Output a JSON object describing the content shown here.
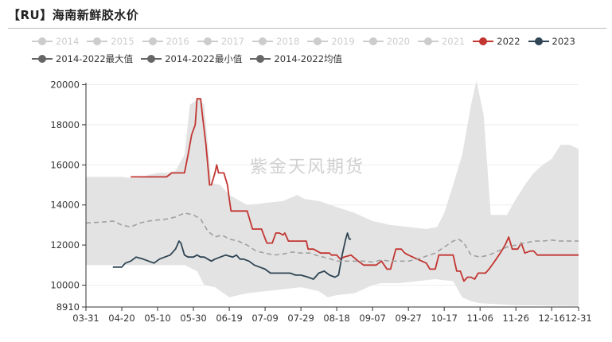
{
  "title": "【RU】海南新鲜胶水价",
  "watermark": "紫金天风期货",
  "colors": {
    "off": "#cccccc",
    "s2022": "#c23531",
    "s2023": "#2f4554",
    "max": "#666666",
    "min": "#666666",
    "avg": "#666666",
    "band": "#e3e3e3",
    "avg_line": "#a0a0a0",
    "axis": "#333333",
    "grid": "#eeeeee"
  },
  "legend": [
    {
      "label": "2014",
      "active": false,
      "color_key": "off"
    },
    {
      "label": "2015",
      "active": false,
      "color_key": "off"
    },
    {
      "label": "2016",
      "active": false,
      "color_key": "off"
    },
    {
      "label": "2017",
      "active": false,
      "color_key": "off"
    },
    {
      "label": "2018",
      "active": false,
      "color_key": "off"
    },
    {
      "label": "2019",
      "active": false,
      "color_key": "off"
    },
    {
      "label": "2020",
      "active": false,
      "color_key": "off"
    },
    {
      "label": "2021",
      "active": false,
      "color_key": "off"
    },
    {
      "label": "2022",
      "active": true,
      "color_key": "s2022"
    },
    {
      "label": "2023",
      "active": true,
      "color_key": "s2023"
    },
    {
      "label": "2014-2022最大值",
      "active": true,
      "color_key": "max"
    },
    {
      "label": "2014-2022最小值",
      "active": true,
      "color_key": "min"
    },
    {
      "label": "2014-2022均值",
      "active": true,
      "color_key": "avg"
    }
  ],
  "chart_data": {
    "type": "line",
    "x_ticks": [
      "03-31",
      "04-20",
      "05-10",
      "05-30",
      "06-19",
      "07-09",
      "07-29",
      "08-18",
      "09-07",
      "09-27",
      "10-17",
      "11-06",
      "11-26",
      "12-16",
      "12-31"
    ],
    "x_tick_days": [
      0,
      20,
      40,
      60,
      80,
      100,
      120,
      140,
      160,
      180,
      200,
      220,
      240,
      260,
      275
    ],
    "y_ticks": [
      8910,
      10000,
      12000,
      14000,
      16000,
      18000,
      20000
    ],
    "ylim": [
      8910,
      20100
    ],
    "xlim": [
      0,
      275
    ],
    "grid": "horizontal",
    "band": {
      "name": "range 2014-2022",
      "max": [
        [
          0,
          15400
        ],
        [
          15,
          15400
        ],
        [
          20,
          15400
        ],
        [
          25,
          15350
        ],
        [
          30,
          15350
        ],
        [
          35,
          15500
        ],
        [
          40,
          15600
        ],
        [
          45,
          15600
        ],
        [
          50,
          15700
        ],
        [
          55,
          16500
        ],
        [
          58,
          19000
        ],
        [
          63,
          19300
        ],
        [
          66,
          19000
        ],
        [
          70,
          15100
        ],
        [
          75,
          15000
        ],
        [
          80,
          14500
        ],
        [
          90,
          14000
        ],
        [
          100,
          14100
        ],
        [
          110,
          14200
        ],
        [
          118,
          14500
        ],
        [
          122,
          14300
        ],
        [
          130,
          14200
        ],
        [
          140,
          13900
        ],
        [
          150,
          13600
        ],
        [
          160,
          13200
        ],
        [
          170,
          13000
        ],
        [
          180,
          12900
        ],
        [
          190,
          12800
        ],
        [
          196,
          12900
        ],
        [
          200,
          13600
        ],
        [
          205,
          15000
        ],
        [
          210,
          16500
        ],
        [
          215,
          19000
        ],
        [
          218,
          20200
        ],
        [
          222,
          18500
        ],
        [
          226,
          13500
        ],
        [
          235,
          13500
        ],
        [
          240,
          14300
        ],
        [
          245,
          15000
        ],
        [
          250,
          15600
        ],
        [
          255,
          16000
        ],
        [
          260,
          16300
        ],
        [
          265,
          17000
        ],
        [
          270,
          17000
        ],
        [
          275,
          16800
        ]
      ],
      "min": [
        [
          0,
          11000
        ],
        [
          20,
          11000
        ],
        [
          40,
          11000
        ],
        [
          55,
          11000
        ],
        [
          62,
          10700
        ],
        [
          66,
          10000
        ],
        [
          72,
          9900
        ],
        [
          80,
          9400
        ],
        [
          90,
          9600
        ],
        [
          100,
          9700
        ],
        [
          110,
          9800
        ],
        [
          120,
          9900
        ],
        [
          130,
          9700
        ],
        [
          135,
          9400
        ],
        [
          140,
          9500
        ],
        [
          150,
          9600
        ],
        [
          160,
          10000
        ],
        [
          165,
          10100
        ],
        [
          175,
          10100
        ],
        [
          185,
          10200
        ],
        [
          195,
          10300
        ],
        [
          205,
          10200
        ],
        [
          210,
          9400
        ],
        [
          215,
          9200
        ],
        [
          220,
          9100
        ],
        [
          230,
          9050
        ],
        [
          240,
          9000
        ],
        [
          250,
          9000
        ],
        [
          260,
          8980
        ],
        [
          275,
          8960
        ]
      ]
    },
    "series": [
      {
        "name": "2022",
        "color_key": "s2022",
        "points": [
          [
            25,
            15400
          ],
          [
            35,
            15400
          ],
          [
            45,
            15400
          ],
          [
            48,
            15600
          ],
          [
            55,
            15600
          ],
          [
            57,
            16500
          ],
          [
            59,
            17500
          ],
          [
            61,
            18000
          ],
          [
            62,
            19300
          ],
          [
            64,
            19300
          ],
          [
            65,
            18500
          ],
          [
            67,
            17000
          ],
          [
            69,
            15000
          ],
          [
            70,
            15000
          ],
          [
            72,
            15600
          ],
          [
            73,
            16000
          ],
          [
            74,
            15600
          ],
          [
            77,
            15600
          ],
          [
            79,
            15000
          ],
          [
            80,
            14300
          ],
          [
            81,
            13700
          ],
          [
            85,
            13700
          ],
          [
            88,
            13700
          ],
          [
            90,
            13700
          ],
          [
            93,
            12800
          ],
          [
            96,
            12800
          ],
          [
            98,
            12800
          ],
          [
            101,
            12100
          ],
          [
            104,
            12100
          ],
          [
            106,
            12600
          ],
          [
            108,
            12600
          ],
          [
            110,
            12500
          ],
          [
            111,
            12600
          ],
          [
            113,
            12200
          ],
          [
            117,
            12200
          ],
          [
            123,
            12200
          ],
          [
            124,
            11800
          ],
          [
            127,
            11800
          ],
          [
            131,
            11600
          ],
          [
            136,
            11600
          ],
          [
            137,
            11500
          ],
          [
            140,
            11500
          ],
          [
            142,
            11300
          ],
          [
            144,
            11400
          ],
          [
            148,
            11500
          ],
          [
            152,
            11200
          ],
          [
            155,
            11000
          ],
          [
            160,
            11000
          ],
          [
            162,
            11000
          ],
          [
            165,
            11200
          ],
          [
            168,
            10800
          ],
          [
            170,
            10800
          ],
          [
            173,
            11800
          ],
          [
            176,
            11800
          ],
          [
            178,
            11600
          ],
          [
            180,
            11500
          ],
          [
            185,
            11300
          ],
          [
            190,
            11100
          ],
          [
            192,
            10800
          ],
          [
            195,
            10800
          ],
          [
            197,
            11500
          ],
          [
            200,
            11500
          ],
          [
            205,
            11500
          ],
          [
            207,
            10700
          ],
          [
            209,
            10700
          ],
          [
            211,
            10200
          ],
          [
            213,
            10400
          ],
          [
            215,
            10400
          ],
          [
            217,
            10300
          ],
          [
            219,
            10600
          ],
          [
            221,
            10600
          ],
          [
            223,
            10600
          ],
          [
            225,
            10800
          ],
          [
            229,
            11300
          ],
          [
            232,
            11700
          ],
          [
            234,
            12000
          ],
          [
            236,
            12400
          ],
          [
            238,
            11800
          ],
          [
            241,
            11800
          ],
          [
            243,
            12100
          ],
          [
            245,
            11600
          ],
          [
            248,
            11700
          ],
          [
            250,
            11700
          ],
          [
            252,
            11500
          ],
          [
            260,
            11500
          ],
          [
            275,
            11500
          ]
        ]
      },
      {
        "name": "2023",
        "color_key": "s2023",
        "points": [
          [
            15,
            10900
          ],
          [
            20,
            10900
          ],
          [
            22,
            11100
          ],
          [
            25,
            11200
          ],
          [
            28,
            11400
          ],
          [
            32,
            11300
          ],
          [
            35,
            11200
          ],
          [
            38,
            11100
          ],
          [
            41,
            11300
          ],
          [
            44,
            11400
          ],
          [
            47,
            11500
          ],
          [
            50,
            11800
          ],
          [
            52,
            12200
          ],
          [
            53,
            12100
          ],
          [
            55,
            11500
          ],
          [
            57,
            11400
          ],
          [
            60,
            11400
          ],
          [
            62,
            11500
          ],
          [
            64,
            11400
          ],
          [
            66,
            11400
          ],
          [
            68,
            11300
          ],
          [
            70,
            11200
          ],
          [
            72,
            11300
          ],
          [
            75,
            11400
          ],
          [
            78,
            11500
          ],
          [
            82,
            11400
          ],
          [
            84,
            11500
          ],
          [
            86,
            11300
          ],
          [
            88,
            11300
          ],
          [
            91,
            11200
          ],
          [
            94,
            11000
          ],
          [
            97,
            10900
          ],
          [
            100,
            10800
          ],
          [
            103,
            10600
          ],
          [
            106,
            10600
          ],
          [
            110,
            10600
          ],
          [
            114,
            10600
          ],
          [
            117,
            10500
          ],
          [
            120,
            10500
          ],
          [
            124,
            10400
          ],
          [
            127,
            10300
          ],
          [
            130,
            10600
          ],
          [
            133,
            10700
          ],
          [
            136,
            10500
          ],
          [
            139,
            10400
          ],
          [
            141,
            10500
          ],
          [
            143,
            11500
          ],
          [
            145,
            12300
          ],
          [
            146,
            12600
          ],
          [
            147,
            12300
          ],
          [
            148,
            12300
          ]
        ]
      },
      {
        "name": "2014-2022均值",
        "color_key": "avg_line",
        "dashed": true,
        "points": [
          [
            0,
            13100
          ],
          [
            10,
            13150
          ],
          [
            15,
            13200
          ],
          [
            20,
            13000
          ],
          [
            25,
            12900
          ],
          [
            30,
            13100
          ],
          [
            35,
            13200
          ],
          [
            40,
            13250
          ],
          [
            45,
            13300
          ],
          [
            50,
            13400
          ],
          [
            55,
            13600
          ],
          [
            60,
            13500
          ],
          [
            64,
            13300
          ],
          [
            68,
            12700
          ],
          [
            72,
            12400
          ],
          [
            76,
            12500
          ],
          [
            80,
            12300
          ],
          [
            85,
            12200
          ],
          [
            90,
            12000
          ],
          [
            95,
            11700
          ],
          [
            100,
            11600
          ],
          [
            105,
            11500
          ],
          [
            110,
            11550
          ],
          [
            115,
            11650
          ],
          [
            120,
            11600
          ],
          [
            125,
            11600
          ],
          [
            130,
            11450
          ],
          [
            135,
            11350
          ],
          [
            140,
            11200
          ],
          [
            145,
            11200
          ],
          [
            150,
            11200
          ],
          [
            155,
            11200
          ],
          [
            160,
            11150
          ],
          [
            165,
            11250
          ],
          [
            170,
            11200
          ],
          [
            175,
            11200
          ],
          [
            180,
            11200
          ],
          [
            185,
            11300
          ],
          [
            190,
            11450
          ],
          [
            195,
            11600
          ],
          [
            200,
            11900
          ],
          [
            205,
            12200
          ],
          [
            208,
            12300
          ],
          [
            211,
            12100
          ],
          [
            215,
            11500
          ],
          [
            220,
            11400
          ],
          [
            225,
            11500
          ],
          [
            230,
            11700
          ],
          [
            235,
            11900
          ],
          [
            240,
            12000
          ],
          [
            245,
            12100
          ],
          [
            250,
            12200
          ],
          [
            255,
            12200
          ],
          [
            260,
            12250
          ],
          [
            265,
            12200
          ],
          [
            270,
            12200
          ],
          [
            275,
            12200
          ]
        ]
      }
    ]
  }
}
